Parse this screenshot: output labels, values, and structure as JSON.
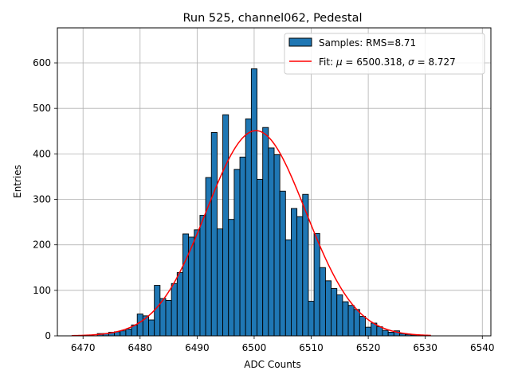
{
  "chart_data": {
    "type": "bar",
    "title": "Run 525, channel062, Pedestal",
    "xlabel": "ADC Counts",
    "ylabel": "Entries",
    "xlim": [
      6465.5,
      6541.5
    ],
    "ylim": [
      0,
      677
    ],
    "xticks": [
      6470,
      6480,
      6490,
      6500,
      6510,
      6520,
      6530,
      6540
    ],
    "yticks": [
      0,
      100,
      200,
      300,
      400,
      500,
      600
    ],
    "grid": true,
    "legend_position": "top-right",
    "colors": {
      "bar_fill": "#1f77b4",
      "bar_edge": "#000000",
      "fit_line": "#ff0000",
      "grid": "#b0b0b0"
    },
    "series": [
      {
        "name": "Samples: RMS=8.71",
        "kind": "histogram",
        "bin_width": 1,
        "bin_start": 6473,
        "values": [
          5,
          5,
          8,
          9,
          11,
          15,
          24,
          48,
          44,
          35,
          111,
          82,
          78,
          115,
          139,
          224,
          217,
          233,
          265,
          348,
          447,
          235,
          486,
          256,
          366,
          393,
          477,
          587,
          344,
          458,
          413,
          398,
          318,
          211,
          280,
          262,
          311,
          76,
          225,
          150,
          121,
          104,
          90,
          75,
          67,
          58,
          43,
          19,
          28,
          20,
          12,
          8,
          11,
          5,
          3,
          2
        ]
      },
      {
        "name": "Fit",
        "label_prefix": "Fit: ",
        "label_mu_eq": " = 6500.318, ",
        "label_sigma_eq": " = 8.727",
        "kind": "gaussian",
        "mu": 6500.318,
        "sigma": 8.727,
        "amplitude": 451,
        "x_range": [
          6468,
          6531
        ]
      }
    ]
  }
}
